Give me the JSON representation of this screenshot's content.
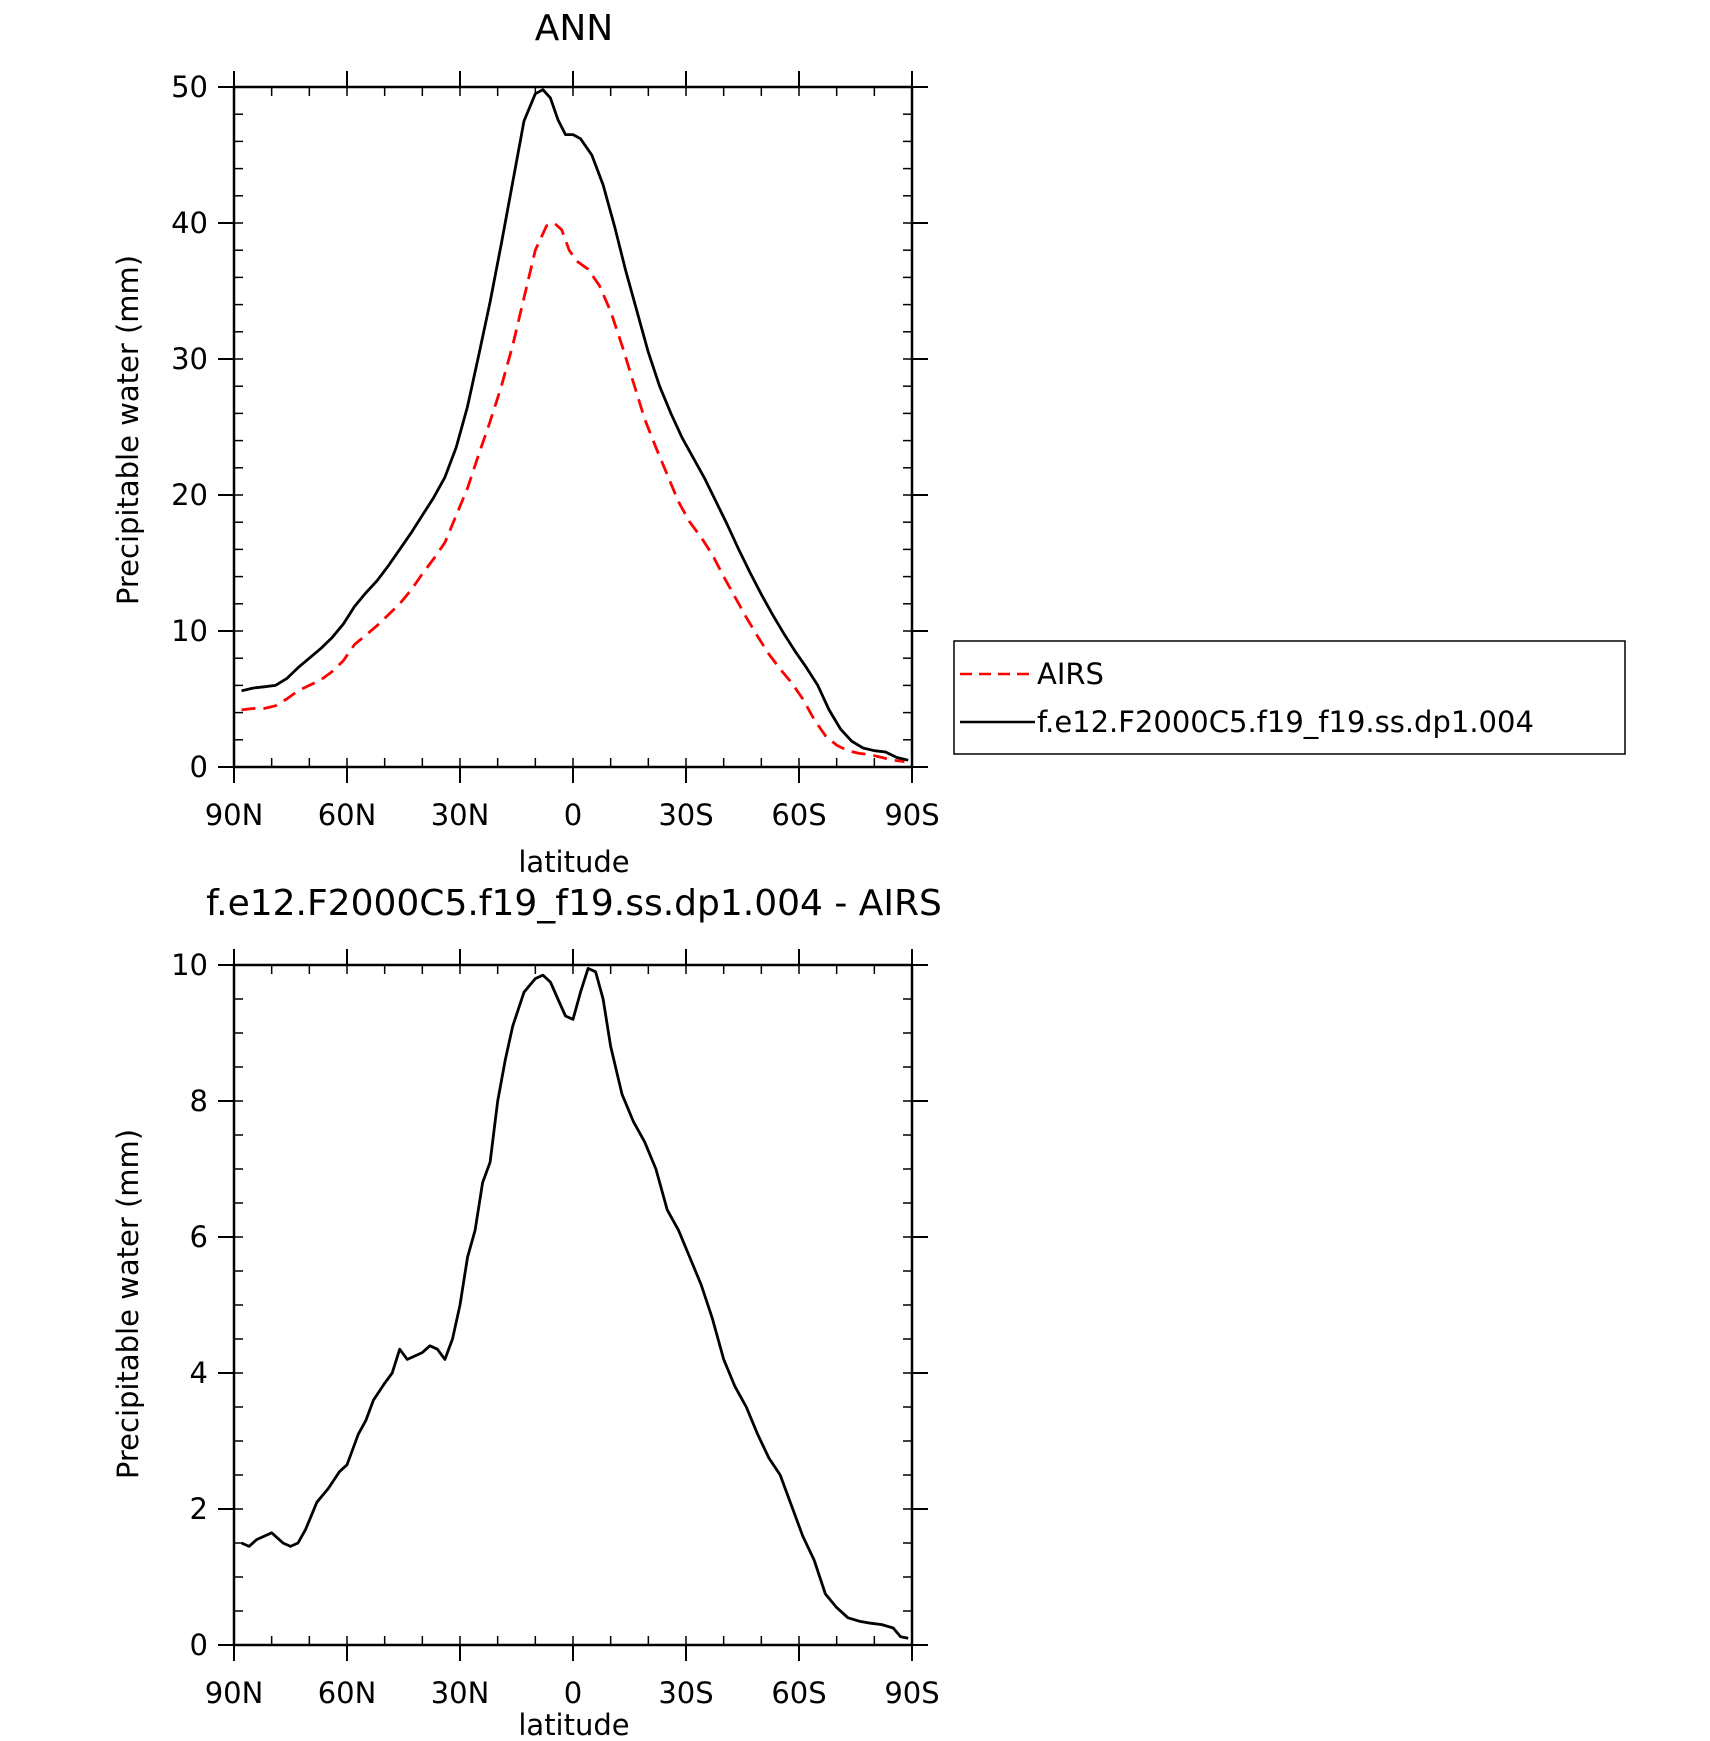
{
  "chart_data": [
    {
      "type": "line",
      "title": "ANN",
      "xlabel": "latitude",
      "ylabel": "Precipitable water (mm)",
      "xlim": [
        90,
        -90
      ],
      "ylim": [
        0,
        50
      ],
      "x_unit_note": "90N..90S",
      "xticks": [
        {
          "value": 90,
          "label": "90N"
        },
        {
          "value": 60,
          "label": "60N"
        },
        {
          "value": 30,
          "label": "30N"
        },
        {
          "value": 0,
          "label": "0"
        },
        {
          "value": -30,
          "label": "30S"
        },
        {
          "value": -60,
          "label": "60S"
        },
        {
          "value": -90,
          "label": "90S"
        }
      ],
      "yticks": [
        0,
        10,
        20,
        30,
        40,
        50
      ],
      "series": [
        {
          "name": "AIRS",
          "color": "#ff0000",
          "dash": "dashed",
          "points": [
            [
              88,
              4.2
            ],
            [
              85,
              4.3
            ],
            [
              82,
              4.3
            ],
            [
              79,
              4.5
            ],
            [
              76,
              5
            ],
            [
              73,
              5.6
            ],
            [
              70,
              6
            ],
            [
              67,
              6.4
            ],
            [
              64,
              7
            ],
            [
              61,
              7.8
            ],
            [
              58,
              9
            ],
            [
              55,
              9.7
            ],
            [
              52,
              10.4
            ],
            [
              49,
              11.2
            ],
            [
              46,
              12
            ],
            [
              43,
              13
            ],
            [
              40,
              14.2
            ],
            [
              37,
              15.3
            ],
            [
              34,
              16.5
            ],
            [
              31,
              18.5
            ],
            [
              28,
              20.5
            ],
            [
              25,
              23
            ],
            [
              22,
              25.4
            ],
            [
              19,
              28
            ],
            [
              16,
              31
            ],
            [
              13,
              34.5
            ],
            [
              10,
              38
            ],
            [
              7,
              39.8
            ],
            [
              5,
              40
            ],
            [
              3,
              39.5
            ],
            [
              1,
              38
            ],
            [
              -1,
              37.2
            ],
            [
              -4,
              36.6
            ],
            [
              -7,
              35.4
            ],
            [
              -10,
              33.5
            ],
            [
              -13,
              31
            ],
            [
              -16,
              28.3
            ],
            [
              -19,
              25.6
            ],
            [
              -22,
              23.5
            ],
            [
              -25,
              21.5
            ],
            [
              -28,
              19.5
            ],
            [
              -31,
              18
            ],
            [
              -34,
              16.9
            ],
            [
              -37,
              15.6
            ],
            [
              -40,
              14
            ],
            [
              -43,
              12.5
            ],
            [
              -46,
              11
            ],
            [
              -49,
              9.6
            ],
            [
              -52,
              8.3
            ],
            [
              -55,
              7.2
            ],
            [
              -58,
              6.2
            ],
            [
              -61,
              5
            ],
            [
              -64,
              3.5
            ],
            [
              -67,
              2.3
            ],
            [
              -70,
              1.6
            ],
            [
              -73,
              1.2
            ],
            [
              -76,
              1
            ],
            [
              -79,
              0.9
            ],
            [
              -82,
              0.7
            ],
            [
              -85,
              0.5
            ],
            [
              -88,
              0.4
            ]
          ]
        },
        {
          "name": "f.e12.F2000C5.f19_f19.ss.dp1.004",
          "color": "#000000",
          "dash": "solid",
          "points": [
            [
              88,
              5.6
            ],
            [
              85,
              5.8
            ],
            [
              82,
              5.9
            ],
            [
              79,
              6
            ],
            [
              76,
              6.5
            ],
            [
              73,
              7.3
            ],
            [
              70,
              8
            ],
            [
              67,
              8.7
            ],
            [
              64,
              9.5
            ],
            [
              61,
              10.5
            ],
            [
              58,
              11.8
            ],
            [
              55,
              12.8
            ],
            [
              52,
              13.7
            ],
            [
              49,
              14.8
            ],
            [
              46,
              16
            ],
            [
              43,
              17.2
            ],
            [
              40,
              18.5
            ],
            [
              37,
              19.8
            ],
            [
              34,
              21.3
            ],
            [
              31,
              23.5
            ],
            [
              28,
              26.5
            ],
            [
              25,
              30.3
            ],
            [
              22,
              34.2
            ],
            [
              19,
              38.5
            ],
            [
              16,
              43
            ],
            [
              13,
              47.5
            ],
            [
              10,
              49.5
            ],
            [
              8,
              49.8
            ],
            [
              6,
              49.2
            ],
            [
              4,
              47.6
            ],
            [
              2,
              46.5
            ],
            [
              0,
              46.5
            ],
            [
              -2,
              46.2
            ],
            [
              -5,
              45
            ],
            [
              -8,
              42.8
            ],
            [
              -11,
              39.8
            ],
            [
              -14,
              36.5
            ],
            [
              -17,
              33.5
            ],
            [
              -20,
              30.5
            ],
            [
              -23,
              28
            ],
            [
              -26,
              26
            ],
            [
              -29,
              24.2
            ],
            [
              -32,
              22.7
            ],
            [
              -35,
              21.2
            ],
            [
              -38,
              19.5
            ],
            [
              -41,
              17.8
            ],
            [
              -44,
              16
            ],
            [
              -47,
              14.3
            ],
            [
              -50,
              12.7
            ],
            [
              -53,
              11.2
            ],
            [
              -56,
              9.8
            ],
            [
              -59,
              8.5
            ],
            [
              -62,
              7.3
            ],
            [
              -65,
              6
            ],
            [
              -68,
              4.2
            ],
            [
              -71,
              2.8
            ],
            [
              -74,
              1.9
            ],
            [
              -77,
              1.4
            ],
            [
              -80,
              1.2
            ],
            [
              -83,
              1.1
            ],
            [
              -86,
              0.7
            ],
            [
              -89,
              0.5
            ]
          ]
        }
      ],
      "legend": {
        "placement": "right",
        "entries": [
          {
            "label": "AIRS",
            "color": "#ff0000",
            "dash": "dashed"
          },
          {
            "label": "f.e12.F2000C5.f19_f19.ss.dp1.004",
            "color": "#000000",
            "dash": "solid"
          }
        ]
      }
    },
    {
      "type": "line",
      "title": "f.e12.F2000C5.f19_f19.ss.dp1.004 - AIRS",
      "xlabel": "latitude",
      "ylabel": "Precipitable water (mm)",
      "xlim": [
        90,
        -90
      ],
      "ylim": [
        0,
        10
      ],
      "xticks": [
        {
          "value": 90,
          "label": "90N"
        },
        {
          "value": 60,
          "label": "60N"
        },
        {
          "value": 30,
          "label": "30N"
        },
        {
          "value": 0,
          "label": "0"
        },
        {
          "value": -30,
          "label": "30S"
        },
        {
          "value": -60,
          "label": "60S"
        },
        {
          "value": -90,
          "label": "90S"
        }
      ],
      "yticks": [
        0,
        2,
        4,
        6,
        8,
        10
      ],
      "series": [
        {
          "name": "",
          "color": "#000000",
          "dash": "solid",
          "points": [
            [
              88,
              1.5
            ],
            [
              86,
              1.45
            ],
            [
              84,
              1.55
            ],
            [
              80,
              1.65
            ],
            [
              77,
              1.5
            ],
            [
              75,
              1.45
            ],
            [
              73,
              1.5
            ],
            [
              71,
              1.7
            ],
            [
              68,
              2.1
            ],
            [
              65,
              2.3
            ],
            [
              62,
              2.55
            ],
            [
              60,
              2.65
            ],
            [
              57,
              3.1
            ],
            [
              55,
              3.3
            ],
            [
              53,
              3.6
            ],
            [
              50,
              3.85
            ],
            [
              48,
              4
            ],
            [
              46,
              4.35
            ],
            [
              44,
              4.2
            ],
            [
              42,
              4.25
            ],
            [
              40,
              4.3
            ],
            [
              38,
              4.4
            ],
            [
              36,
              4.35
            ],
            [
              34,
              4.2
            ],
            [
              32,
              4.5
            ],
            [
              30,
              5
            ],
            [
              28,
              5.7
            ],
            [
              26,
              6.1
            ],
            [
              24,
              6.8
            ],
            [
              22,
              7.1
            ],
            [
              20,
              8
            ],
            [
              18,
              8.6
            ],
            [
              16,
              9.1
            ],
            [
              13,
              9.6
            ],
            [
              10,
              9.8
            ],
            [
              8,
              9.85
            ],
            [
              6,
              9.75
            ],
            [
              4,
              9.5
            ],
            [
              2,
              9.25
            ],
            [
              0,
              9.2
            ],
            [
              -2,
              9.6
            ],
            [
              -4,
              9.95
            ],
            [
              -6,
              9.9
            ],
            [
              -8,
              9.5
            ],
            [
              -10,
              8.8
            ],
            [
              -13,
              8.1
            ],
            [
              -16,
              7.7
            ],
            [
              -19,
              7.4
            ],
            [
              -22,
              7
            ],
            [
              -25,
              6.4
            ],
            [
              -28,
              6.1
            ],
            [
              -31,
              5.7
            ],
            [
              -34,
              5.3
            ],
            [
              -37,
              4.8
            ],
            [
              -40,
              4.2
            ],
            [
              -43,
              3.8
            ],
            [
              -46,
              3.5
            ],
            [
              -49,
              3.1
            ],
            [
              -52,
              2.75
            ],
            [
              -55,
              2.5
            ],
            [
              -58,
              2.05
            ],
            [
              -61,
              1.6
            ],
            [
              -64,
              1.25
            ],
            [
              -67,
              0.75
            ],
            [
              -70,
              0.55
            ],
            [
              -73,
              0.4
            ],
            [
              -76,
              0.35
            ],
            [
              -79,
              0.32
            ],
            [
              -82,
              0.3
            ],
            [
              -85,
              0.25
            ],
            [
              -87,
              0.12
            ],
            [
              -89,
              0.1
            ]
          ]
        }
      ]
    }
  ]
}
